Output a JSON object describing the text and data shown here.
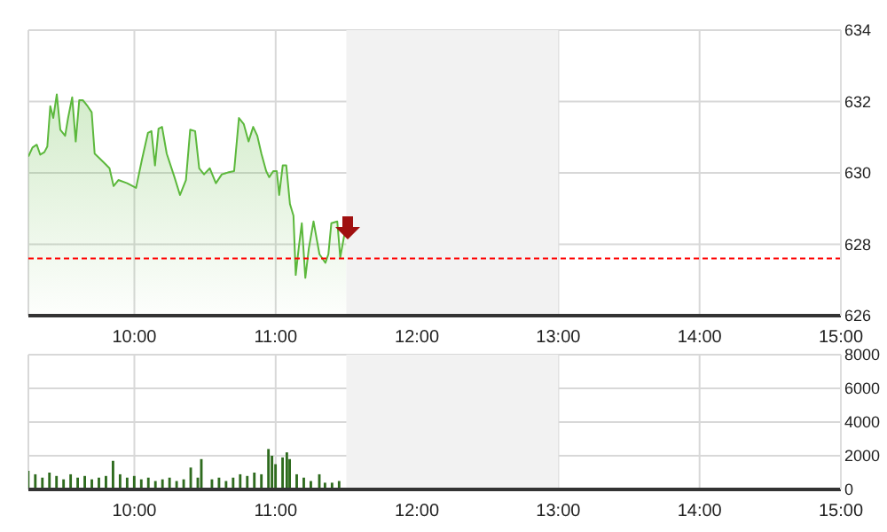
{
  "chart_data": [
    {
      "type": "area",
      "x": [
        9.25,
        9.279,
        9.309,
        9.334,
        9.363,
        9.384,
        9.405,
        9.426,
        9.451,
        9.476,
        9.51,
        9.531,
        9.56,
        9.585,
        9.61,
        9.635,
        9.669,
        9.698,
        9.719,
        9.782,
        9.824,
        9.853,
        9.887,
        9.949,
        10.012,
        10.054,
        10.096,
        10.121,
        10.146,
        10.171,
        10.196,
        10.229,
        10.284,
        10.323,
        10.365,
        10.395,
        10.43,
        10.459,
        10.493,
        10.534,
        10.577,
        10.619,
        10.661,
        10.706,
        10.74,
        10.774,
        10.808,
        10.841,
        10.87,
        10.899,
        10.933,
        10.954,
        10.983,
        11.008,
        11.025,
        11.05,
        11.075,
        11.101,
        11.126,
        11.142,
        11.163,
        11.185,
        11.21,
        11.235,
        11.268,
        11.31,
        11.352,
        11.373,
        11.394,
        11.436,
        11.457,
        11.499
      ],
      "series": [
        {
          "color": "#5cb83c",
          "values": [
            630.46,
            630.71,
            630.79,
            630.51,
            630.58,
            630.74,
            631.87,
            631.54,
            632.2,
            631.21,
            631.04,
            631.54,
            632.12,
            630.88,
            632.04,
            632.04,
            631.87,
            631.7,
            630.54,
            630.3,
            630.13,
            629.63,
            629.8,
            629.71,
            629.58,
            630.38,
            631.12,
            631.17,
            630.21,
            631.24,
            631.29,
            630.54,
            629.88,
            629.38,
            629.8,
            631.21,
            631.17,
            630.13,
            629.96,
            630.13,
            629.71,
            629.96,
            630.01,
            630.05,
            631.54,
            631.37,
            630.88,
            631.29,
            631.04,
            630.54,
            630.05,
            629.88,
            630.05,
            630.05,
            629.38,
            630.21,
            630.21,
            629.13,
            628.8,
            627.14,
            627.89,
            628.59,
            627.06,
            627.89,
            628.64,
            627.72,
            627.48,
            627.72,
            628.59,
            628.64,
            627.63,
            628.55
          ]
        }
      ],
      "xlim": [
        9.25,
        15
      ],
      "xticks": [
        {
          "value": 10,
          "label": "10:00"
        },
        {
          "value": 11,
          "label": "11:00"
        },
        {
          "value": 12,
          "label": "12:00"
        },
        {
          "value": 13,
          "label": "13:00"
        },
        {
          "value": 14,
          "label": "14:00"
        },
        {
          "value": 15,
          "label": "15:00"
        }
      ],
      "ylim": [
        626,
        634
      ],
      "yticks": [
        626,
        628,
        630,
        632,
        634
      ],
      "grid": true,
      "ref_lines": [
        {
          "axis": "y",
          "value": 627.6,
          "color": "#ff0000",
          "line_style": "dotted"
        }
      ],
      "bands": [
        {
          "axis": "x",
          "from": 11.5,
          "to": 13,
          "color": "#f2f2f2"
        }
      ]
    },
    {
      "type": "bar",
      "x": [
        9.25,
        9.3,
        9.35,
        9.4,
        9.45,
        9.5,
        9.55,
        9.6,
        9.65,
        9.7,
        9.75,
        9.8,
        9.85,
        9.9,
        9.95,
        10,
        10.05,
        10.1,
        10.15,
        10.2,
        10.25,
        10.3,
        10.35,
        10.4,
        10.45,
        10.475,
        10.55,
        10.6,
        10.65,
        10.7,
        10.75,
        10.8,
        10.85,
        10.9,
        10.95,
        10.975,
        11,
        11.05,
        11.08,
        11.1,
        11.15,
        11.2,
        11.25,
        11.31,
        11.35,
        11.4,
        11.45
      ],
      "series": [
        {
          "color": "#2e6b1e",
          "values": [
            1100,
            900,
            700,
            1000,
            800,
            600,
            900,
            700,
            800,
            600,
            700,
            800,
            1700,
            900,
            700,
            800,
            600,
            700,
            500,
            600,
            700,
            500,
            600,
            1300,
            700,
            1800,
            600,
            700,
            500,
            700,
            900,
            800,
            1000,
            900,
            2400,
            2000,
            1500,
            1900,
            2200,
            1800,
            900,
            700,
            500,
            900,
            400,
            400,
            500
          ]
        }
      ],
      "xlim": [
        9.25,
        15
      ],
      "xticks": [
        {
          "value": 10,
          "label": "10:00"
        },
        {
          "value": 11,
          "label": "11:00"
        },
        {
          "value": 12,
          "label": "12:00"
        },
        {
          "value": 13,
          "label": "13:00"
        },
        {
          "value": 14,
          "label": "14:00"
        },
        {
          "value": 15,
          "label": "15:00"
        }
      ],
      "ylim": [
        0,
        8000
      ],
      "yticks": [
        0,
        2000,
        4000,
        6000,
        8000
      ],
      "grid": true,
      "bands": [
        {
          "axis": "x",
          "from": 11.5,
          "to": 13,
          "color": "#f2f2f2"
        }
      ]
    }
  ]
}
